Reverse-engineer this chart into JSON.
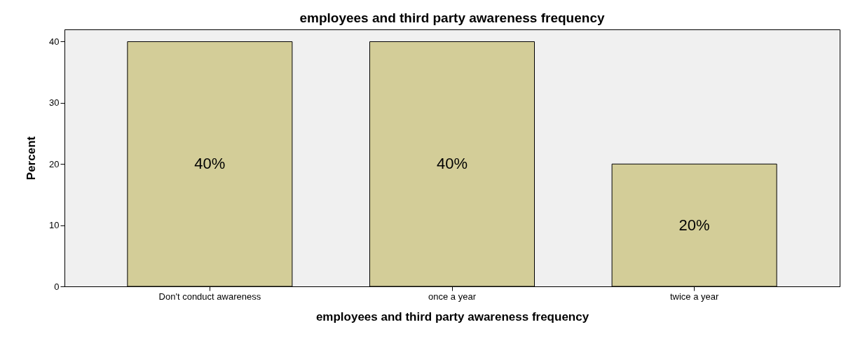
{
  "chart_data": {
    "type": "bar",
    "title": "employees and third party awareness frequency",
    "xlabel": "employees and third party awareness frequency",
    "ylabel": "Percent",
    "categories": [
      "Don't conduct awareness",
      "once a year",
      "twice  a year"
    ],
    "values": [
      40,
      40,
      20
    ],
    "value_labels": [
      "40%",
      "40%",
      "20%"
    ],
    "color": "#d3cd98",
    "ylim": [
      0,
      42
    ],
    "yticks": [
      0,
      10,
      20,
      30,
      40
    ],
    "grid": false
  }
}
